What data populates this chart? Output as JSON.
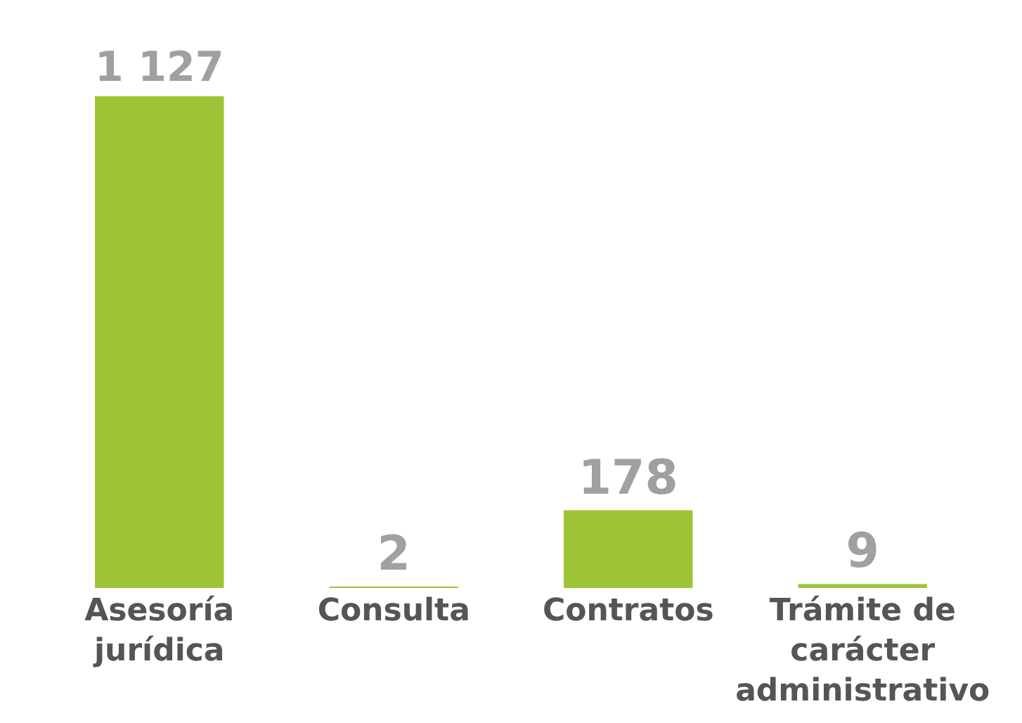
{
  "chart_data": {
    "type": "bar",
    "categories": [
      "Asesoría jurídica",
      "Consulta",
      "Contratos",
      "Trámite de carácter administrativo"
    ],
    "values": [
      1127,
      2,
      178,
      9
    ],
    "value_labels": [
      "1 127",
      "2",
      "178",
      "9"
    ],
    "color": "#9dc435"
  }
}
